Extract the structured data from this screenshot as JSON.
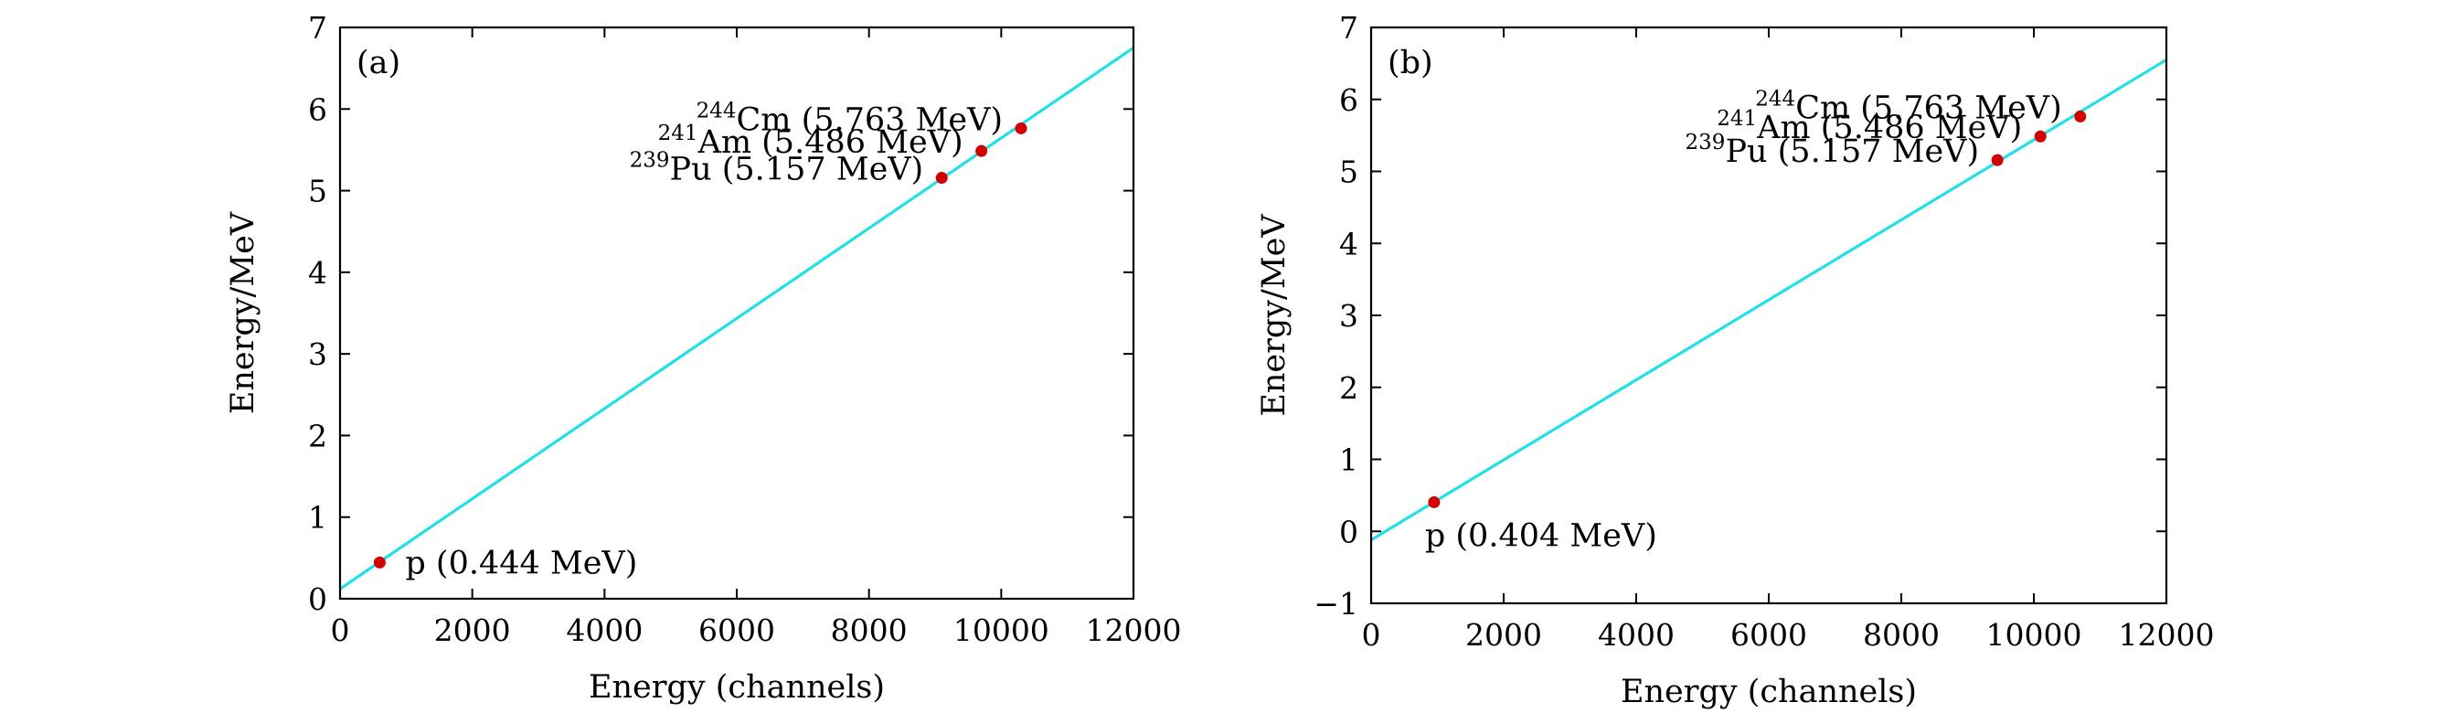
{
  "chart_data": [
    {
      "type": "scatter",
      "panel_label": "(a)",
      "xlabel": "Energy (channels)",
      "ylabel": "Energy/MeV",
      "xlim": [
        0,
        12000
      ],
      "ylim": [
        0,
        7
      ],
      "xticks": [
        0,
        2000,
        4000,
        6000,
        8000,
        10000,
        12000
      ],
      "yticks": [
        0,
        1,
        2,
        3,
        4,
        5,
        6,
        7
      ],
      "fit_line": {
        "x": [
          0,
          12000
        ],
        "y": [
          0.12,
          6.75
        ],
        "color": "#22e0e6"
      },
      "points": [
        {
          "x": 600,
          "y": 0.444,
          "label": "p (0.444 MeV)",
          "sup": "",
          "name": "",
          "label_side": "right"
        },
        {
          "x": 9100,
          "y": 5.157,
          "label": "Pu (5.157 MeV)",
          "sup": "239",
          "name": "Pu",
          "label_side": "left"
        },
        {
          "x": 9700,
          "y": 5.486,
          "label": "Am (5.486 MeV)",
          "sup": "241",
          "name": "Am",
          "label_side": "left"
        },
        {
          "x": 10300,
          "y": 5.763,
          "label": "Cm (5.763 MeV)",
          "sup": "244",
          "name": "Cm",
          "label_side": "left"
        }
      ],
      "point_color": "#d40000"
    },
    {
      "type": "scatter",
      "panel_label": "(b)",
      "xlabel": "Energy (channels)",
      "ylabel": "Energy/MeV",
      "xlim": [
        0,
        12000
      ],
      "ylim": [
        -1,
        7
      ],
      "xticks": [
        0,
        2000,
        4000,
        6000,
        8000,
        10000,
        12000
      ],
      "yticks": [
        -1,
        0,
        1,
        2,
        3,
        4,
        5,
        6,
        7
      ],
      "ytick_labels": [
        "−1",
        "0",
        "1",
        "2",
        "3",
        "4",
        "5",
        "6",
        "7"
      ],
      "fit_line": {
        "x": [
          0,
          12000
        ],
        "y": [
          -0.12,
          6.55
        ],
        "color": "#22e0e6"
      },
      "points": [
        {
          "x": 950,
          "y": 0.404,
          "label": "p (0.404 MeV)",
          "sup": "",
          "name": "",
          "label_side": "below"
        },
        {
          "x": 9450,
          "y": 5.157,
          "label": "Pu (5.157 MeV)",
          "sup": "239",
          "name": "Pu",
          "label_side": "left"
        },
        {
          "x": 10100,
          "y": 5.486,
          "label": "Am (5.486 MeV)",
          "sup": "241",
          "name": "Am",
          "label_side": "left"
        },
        {
          "x": 10700,
          "y": 5.763,
          "label": "Cm (5.763 MeV)",
          "sup": "244",
          "name": "Cm",
          "label_side": "left"
        }
      ],
      "point_color": "#d40000"
    }
  ]
}
